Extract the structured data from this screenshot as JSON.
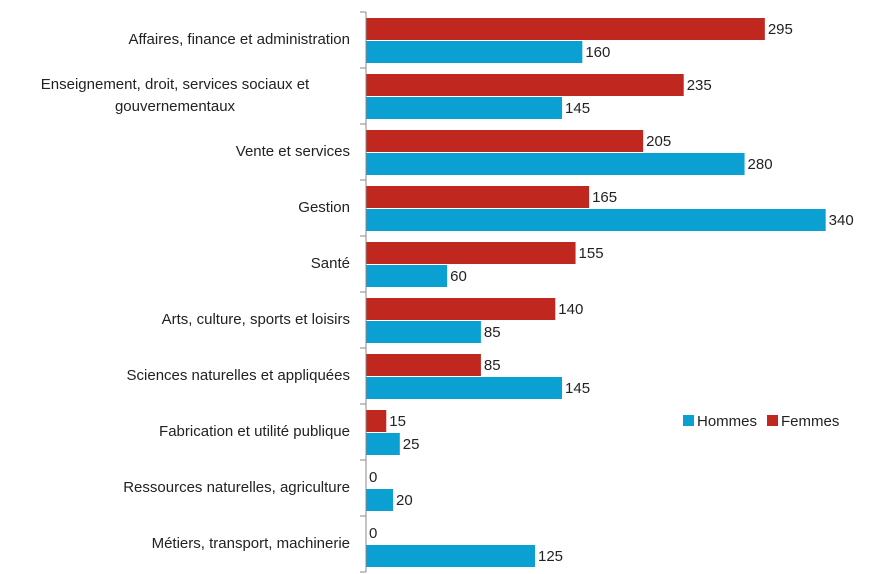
{
  "chart_data": {
    "type": "bar",
    "orientation": "horizontal",
    "categories": [
      "Affaires, finance et administration",
      "Enseignement, droit, services sociaux et gouvernementaux",
      "Vente et services",
      "Gestion",
      "Santé",
      "Arts, culture, sports et loisirs",
      "Sciences naturelles et appliquées",
      "Fabrication et utilité publique",
      "Ressources naturelles, agriculture",
      "Métiers, transport, machinerie"
    ],
    "series": [
      {
        "name": "Hommes",
        "color": "#0aa0d2",
        "values": [
          160,
          145,
          280,
          340,
          60,
          85,
          145,
          25,
          20,
          125
        ]
      },
      {
        "name": "Femmes",
        "color": "#c0271f",
        "values": [
          295,
          235,
          205,
          165,
          155,
          140,
          85,
          15,
          0,
          0
        ]
      }
    ],
    "xlim": [
      0,
      375
    ],
    "legend": "right"
  }
}
